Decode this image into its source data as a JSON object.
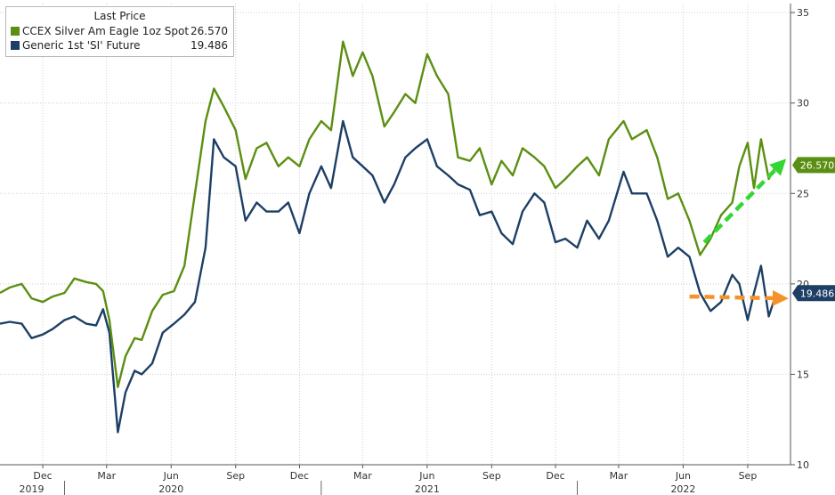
{
  "legend": {
    "title": "Last Price",
    "series": [
      {
        "name": "CCEX Silver Am Eagle 1oz Spot",
        "last": "26.570",
        "color": "#5b8f12"
      },
      {
        "name": "Generic 1st 'SI' Future",
        "last": "19.486",
        "color": "#1d3f66"
      }
    ]
  },
  "chart_data": {
    "type": "line",
    "xlim": [
      "2019-10-01",
      "2022-11-01"
    ],
    "ylim": [
      10,
      35.5
    ],
    "yticks": [
      10,
      15,
      20,
      25,
      30,
      35
    ],
    "grid": true,
    "legend_position": "top-left",
    "x_month_ticks": [
      {
        "label": "Dec",
        "date": "2019-12-01"
      },
      {
        "label": "Mar",
        "date": "2020-03-01"
      },
      {
        "label": "Jun",
        "date": "2020-06-01"
      },
      {
        "label": "Sep",
        "date": "2020-09-01"
      },
      {
        "label": "Dec",
        "date": "2020-12-01"
      },
      {
        "label": "Mar",
        "date": "2021-03-01"
      },
      {
        "label": "Jun",
        "date": "2021-06-01"
      },
      {
        "label": "Sep",
        "date": "2021-09-01"
      },
      {
        "label": "Dec",
        "date": "2021-12-01"
      },
      {
        "label": "Mar",
        "date": "2022-03-01"
      },
      {
        "label": "Jun",
        "date": "2022-06-01"
      },
      {
        "label": "Sep",
        "date": "2022-09-01"
      }
    ],
    "x_year_ticks": [
      {
        "label": "2019",
        "date": "2019-11-15"
      },
      {
        "label": "2020",
        "date": "2020-06-01"
      },
      {
        "label": "2021",
        "date": "2021-06-01"
      },
      {
        "label": "2022",
        "date": "2022-06-01"
      }
    ],
    "x_year_dividers": [
      "2020-01-01",
      "2021-01-01",
      "2022-01-01"
    ],
    "series": [
      {
        "name": "CCEX Silver Am Eagle 1oz Spot",
        "color": "#5b8f12",
        "last_label": "26.570",
        "points": [
          [
            "2019-10-01",
            19.5
          ],
          [
            "2019-10-15",
            19.8
          ],
          [
            "2019-11-01",
            20.0
          ],
          [
            "2019-11-15",
            19.2
          ],
          [
            "2019-12-01",
            19.0
          ],
          [
            "2019-12-15",
            19.3
          ],
          [
            "2020-01-01",
            19.5
          ],
          [
            "2020-01-15",
            20.3
          ],
          [
            "2020-02-01",
            20.1
          ],
          [
            "2020-02-15",
            20.0
          ],
          [
            "2020-02-25",
            19.6
          ],
          [
            "2020-03-05",
            18.0
          ],
          [
            "2020-03-17",
            14.3
          ],
          [
            "2020-03-28",
            16.0
          ],
          [
            "2020-04-10",
            17.0
          ],
          [
            "2020-04-20",
            16.9
          ],
          [
            "2020-05-05",
            18.5
          ],
          [
            "2020-05-20",
            19.4
          ],
          [
            "2020-06-05",
            19.6
          ],
          [
            "2020-06-20",
            21.0
          ],
          [
            "2020-07-05",
            25.0
          ],
          [
            "2020-07-20",
            29.0
          ],
          [
            "2020-08-01",
            30.8
          ],
          [
            "2020-08-15",
            29.8
          ],
          [
            "2020-09-01",
            28.5
          ],
          [
            "2020-09-15",
            25.8
          ],
          [
            "2020-10-01",
            27.5
          ],
          [
            "2020-10-15",
            27.8
          ],
          [
            "2020-11-01",
            26.5
          ],
          [
            "2020-11-15",
            27.0
          ],
          [
            "2020-12-01",
            26.5
          ],
          [
            "2020-12-15",
            28.0
          ],
          [
            "2021-01-01",
            29.0
          ],
          [
            "2021-01-15",
            28.5
          ],
          [
            "2021-02-01",
            33.4
          ],
          [
            "2021-02-15",
            31.5
          ],
          [
            "2021-03-01",
            32.8
          ],
          [
            "2021-03-15",
            31.5
          ],
          [
            "2021-04-01",
            28.7
          ],
          [
            "2021-04-15",
            29.5
          ],
          [
            "2021-05-01",
            30.5
          ],
          [
            "2021-05-15",
            30.0
          ],
          [
            "2021-06-01",
            32.7
          ],
          [
            "2021-06-15",
            31.5
          ],
          [
            "2021-07-01",
            30.5
          ],
          [
            "2021-07-15",
            27.0
          ],
          [
            "2021-08-01",
            26.8
          ],
          [
            "2021-08-15",
            27.5
          ],
          [
            "2021-09-01",
            25.5
          ],
          [
            "2021-09-15",
            26.8
          ],
          [
            "2021-10-01",
            26.0
          ],
          [
            "2021-10-15",
            27.5
          ],
          [
            "2021-11-01",
            27.0
          ],
          [
            "2021-11-15",
            26.5
          ],
          [
            "2021-12-01",
            25.3
          ],
          [
            "2021-12-15",
            25.8
          ],
          [
            "2022-01-01",
            26.5
          ],
          [
            "2022-01-15",
            27.0
          ],
          [
            "2022-02-01",
            26.0
          ],
          [
            "2022-02-15",
            28.0
          ],
          [
            "2022-03-08",
            29.0
          ],
          [
            "2022-03-20",
            28.0
          ],
          [
            "2022-04-10",
            28.5
          ],
          [
            "2022-04-25",
            27.0
          ],
          [
            "2022-05-10",
            24.7
          ],
          [
            "2022-05-25",
            25.0
          ],
          [
            "2022-06-10",
            23.5
          ],
          [
            "2022-06-25",
            21.6
          ],
          [
            "2022-07-10",
            22.5
          ],
          [
            "2022-07-25",
            23.8
          ],
          [
            "2022-08-10",
            24.5
          ],
          [
            "2022-08-20",
            26.5
          ],
          [
            "2022-09-01",
            27.8
          ],
          [
            "2022-09-10",
            25.3
          ],
          [
            "2022-09-20",
            28.0
          ],
          [
            "2022-10-01",
            25.8
          ],
          [
            "2022-10-12",
            26.57
          ]
        ]
      },
      {
        "name": "Generic 1st 'SI' Future",
        "color": "#1d3f66",
        "last_label": "19.486",
        "points": [
          [
            "2019-10-01",
            17.8
          ],
          [
            "2019-10-15",
            17.9
          ],
          [
            "2019-11-01",
            17.8
          ],
          [
            "2019-11-15",
            17.0
          ],
          [
            "2019-12-01",
            17.2
          ],
          [
            "2019-12-15",
            17.5
          ],
          [
            "2020-01-01",
            18.0
          ],
          [
            "2020-01-15",
            18.2
          ],
          [
            "2020-02-01",
            17.8
          ],
          [
            "2020-02-15",
            17.7
          ],
          [
            "2020-02-25",
            18.6
          ],
          [
            "2020-03-05",
            17.3
          ],
          [
            "2020-03-17",
            11.8
          ],
          [
            "2020-03-28",
            14.0
          ],
          [
            "2020-04-10",
            15.2
          ],
          [
            "2020-04-20",
            15.0
          ],
          [
            "2020-05-05",
            15.6
          ],
          [
            "2020-05-20",
            17.3
          ],
          [
            "2020-06-05",
            17.8
          ],
          [
            "2020-06-20",
            18.3
          ],
          [
            "2020-07-05",
            19.0
          ],
          [
            "2020-07-20",
            22.0
          ],
          [
            "2020-08-01",
            28.0
          ],
          [
            "2020-08-15",
            27.0
          ],
          [
            "2020-09-01",
            26.5
          ],
          [
            "2020-09-15",
            23.5
          ],
          [
            "2020-10-01",
            24.5
          ],
          [
            "2020-10-15",
            24.0
          ],
          [
            "2020-11-01",
            24.0
          ],
          [
            "2020-11-15",
            24.5
          ],
          [
            "2020-12-01",
            22.8
          ],
          [
            "2020-12-15",
            25.0
          ],
          [
            "2021-01-01",
            26.5
          ],
          [
            "2021-01-15",
            25.3
          ],
          [
            "2021-02-01",
            29.0
          ],
          [
            "2021-02-15",
            27.0
          ],
          [
            "2021-03-01",
            26.5
          ],
          [
            "2021-03-15",
            26.0
          ],
          [
            "2021-04-01",
            24.5
          ],
          [
            "2021-04-15",
            25.5
          ],
          [
            "2021-05-01",
            27.0
          ],
          [
            "2021-05-15",
            27.5
          ],
          [
            "2021-06-01",
            28.0
          ],
          [
            "2021-06-15",
            26.5
          ],
          [
            "2021-07-01",
            26.0
          ],
          [
            "2021-07-15",
            25.5
          ],
          [
            "2021-08-01",
            25.2
          ],
          [
            "2021-08-15",
            23.8
          ],
          [
            "2021-09-01",
            24.0
          ],
          [
            "2021-09-15",
            22.8
          ],
          [
            "2021-10-01",
            22.2
          ],
          [
            "2021-10-15",
            24.0
          ],
          [
            "2021-11-01",
            25.0
          ],
          [
            "2021-11-15",
            24.5
          ],
          [
            "2021-12-01",
            22.3
          ],
          [
            "2021-12-15",
            22.5
          ],
          [
            "2022-01-01",
            22.0
          ],
          [
            "2022-01-15",
            23.5
          ],
          [
            "2022-02-01",
            22.5
          ],
          [
            "2022-02-15",
            23.5
          ],
          [
            "2022-03-08",
            26.2
          ],
          [
            "2022-03-20",
            25.0
          ],
          [
            "2022-04-10",
            25.0
          ],
          [
            "2022-04-25",
            23.5
          ],
          [
            "2022-05-10",
            21.5
          ],
          [
            "2022-05-25",
            22.0
          ],
          [
            "2022-06-10",
            21.5
          ],
          [
            "2022-06-25",
            19.5
          ],
          [
            "2022-07-10",
            18.5
          ],
          [
            "2022-07-25",
            19.0
          ],
          [
            "2022-08-10",
            20.5
          ],
          [
            "2022-08-20",
            20.0
          ],
          [
            "2022-09-01",
            18.0
          ],
          [
            "2022-09-10",
            19.5
          ],
          [
            "2022-09-20",
            21.0
          ],
          [
            "2022-10-01",
            18.2
          ],
          [
            "2022-10-12",
            19.486
          ]
        ]
      }
    ],
    "annotations": [
      {
        "type": "arrow",
        "style": "dashed",
        "color": "#33d633",
        "from": [
          "2022-07-01",
          22.3
        ],
        "to": [
          "2022-10-28",
          26.6
        ]
      },
      {
        "type": "arrow",
        "style": "dashed",
        "color": "#f5922a",
        "from": [
          "2022-06-10",
          19.3
        ],
        "to": [
          "2022-10-28",
          19.2
        ]
      }
    ]
  }
}
